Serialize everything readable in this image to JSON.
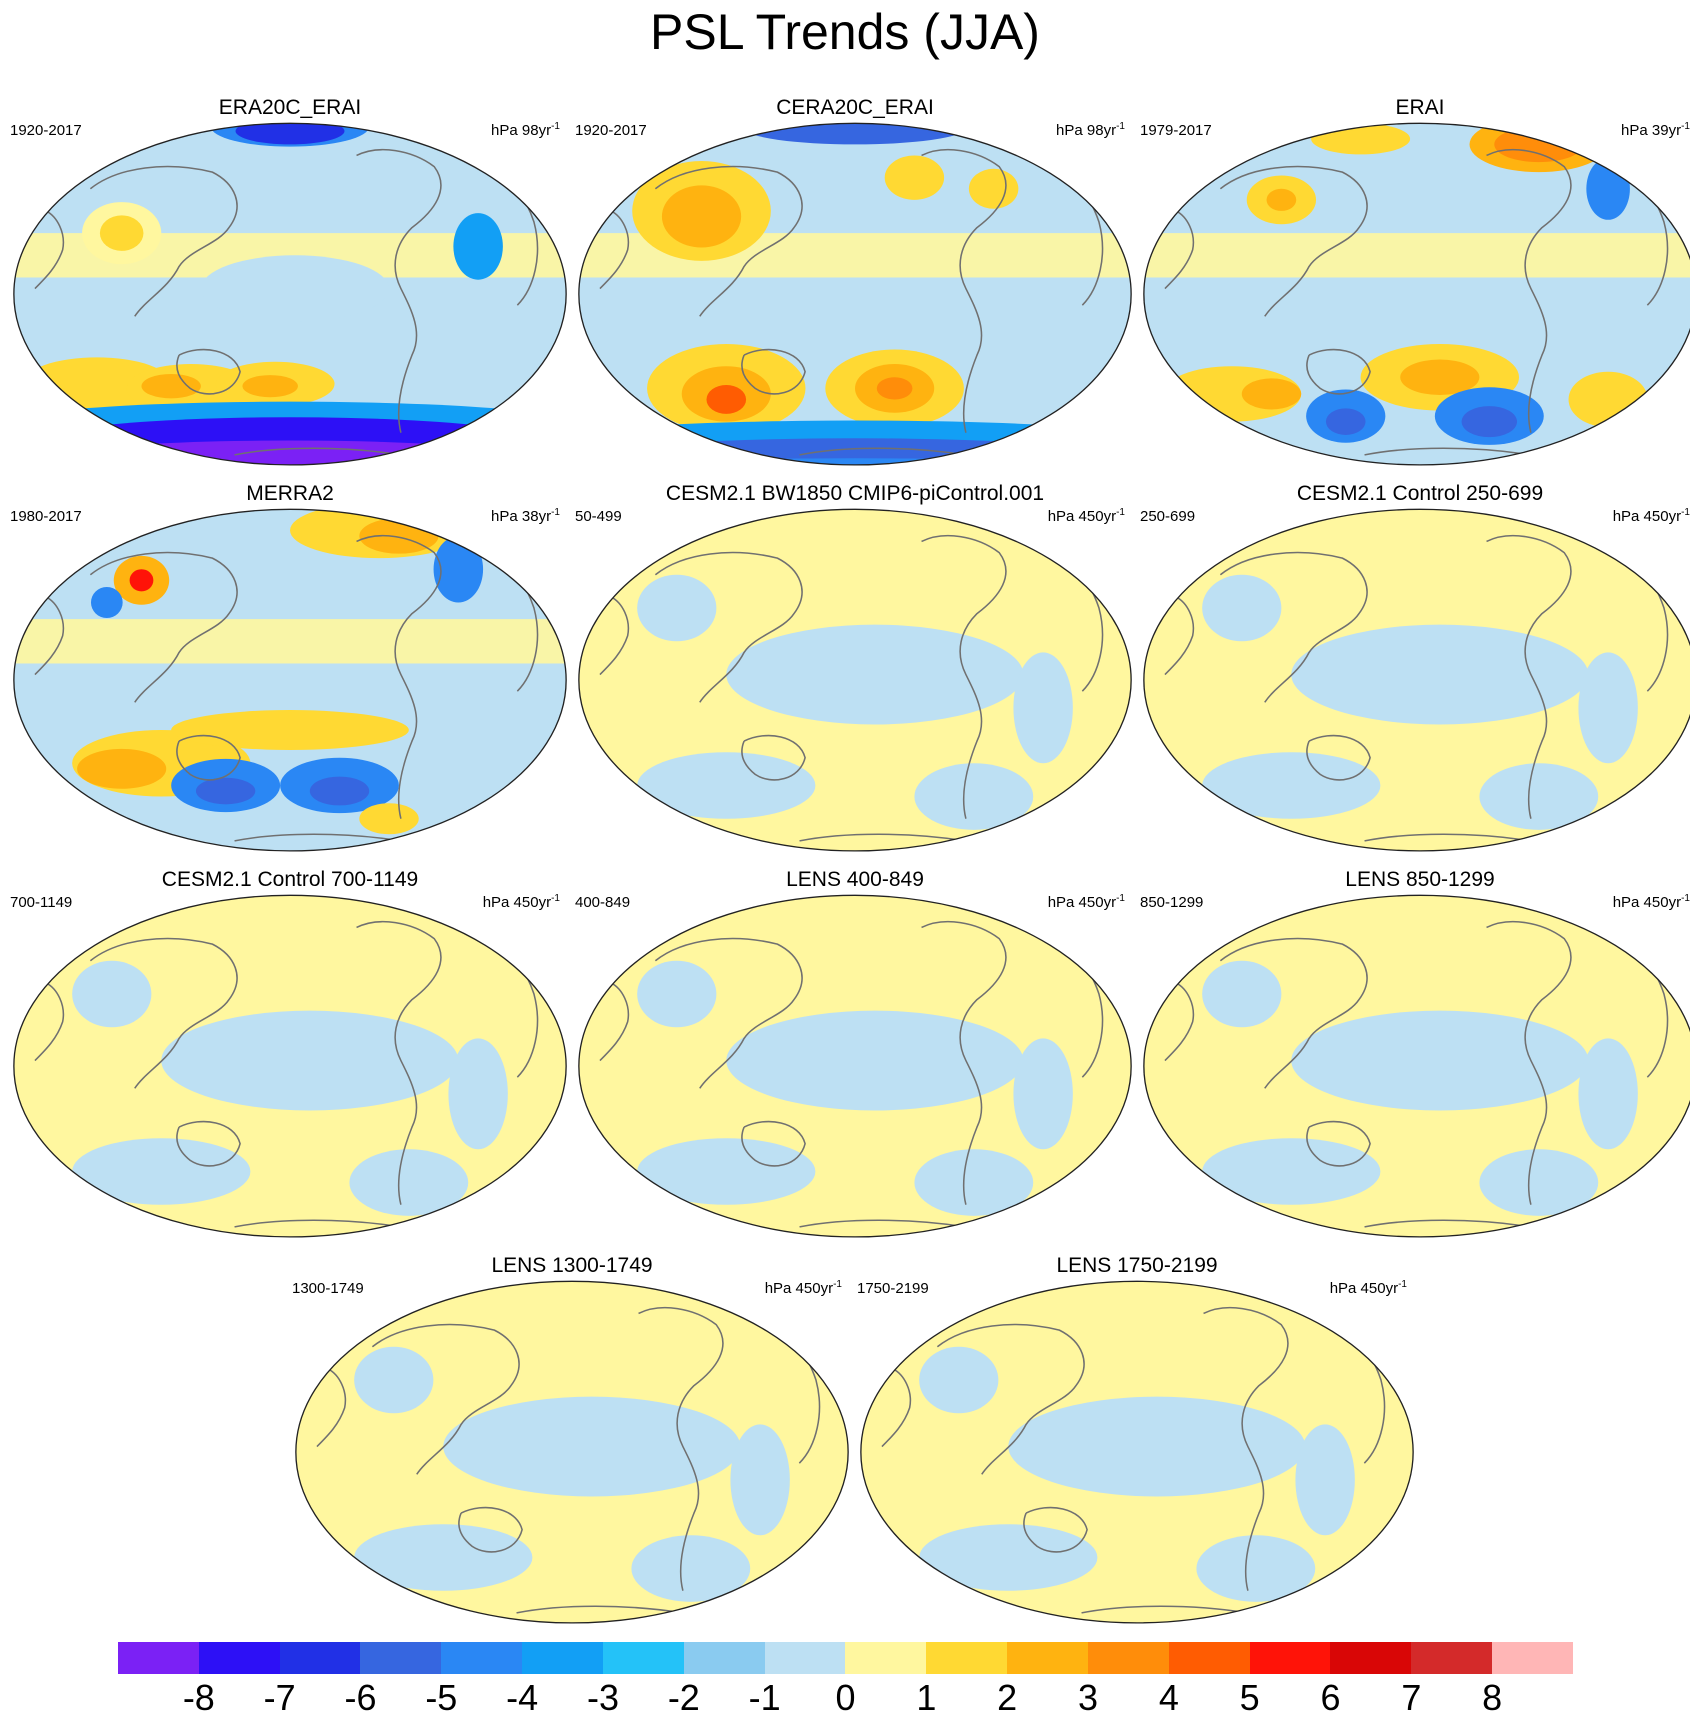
{
  "figure": {
    "title": "PSL Trends (JJA)"
  },
  "panels": [
    {
      "title": "ERA20C_ERAI",
      "period": "1920-2017",
      "units": "hPa 98yr",
      "units_exp": "-1",
      "pattern": "era20c"
    },
    {
      "title": "CERA20C_ERAI",
      "period": "1920-2017",
      "units": "hPa 98yr",
      "units_exp": "-1",
      "pattern": "cera20c"
    },
    {
      "title": "ERAI",
      "period": "1979-2017",
      "units": "hPa 39yr",
      "units_exp": "-1",
      "pattern": "erai"
    },
    {
      "title": "MERRA2",
      "period": "1980-2017",
      "units": "hPa 38yr",
      "units_exp": "-1",
      "pattern": "merra2"
    },
    {
      "title": "CESM2.1 BW1850 CMIP6-piControl.001",
      "period": "50-499",
      "units": "hPa 450yr",
      "units_exp": "-1",
      "pattern": "control"
    },
    {
      "title": "CESM2.1 Control 250-699",
      "period": "250-699",
      "units": "hPa 450yr",
      "units_exp": "-1",
      "pattern": "control"
    },
    {
      "title": "CESM2.1 Control 700-1149",
      "period": "700-1149",
      "units": "hPa 450yr",
      "units_exp": "-1",
      "pattern": "control"
    },
    {
      "title": "LENS 400-849",
      "period": "400-849",
      "units": "hPa 450yr",
      "units_exp": "-1",
      "pattern": "control"
    },
    {
      "title": "LENS 850-1299",
      "period": "850-1299",
      "units": "hPa 450yr",
      "units_exp": "-1",
      "pattern": "control"
    },
    {
      "title": "LENS 1300-1749",
      "period": "1300-1749",
      "units": "hPa 450yr",
      "units_exp": "-1",
      "pattern": "control"
    },
    {
      "title": "LENS 1750-2199",
      "period": "1750-2199",
      "units": "hPa 450yr",
      "units_exp": "-1",
      "pattern": "control"
    }
  ],
  "colorbar": {
    "labels": [
      "-8",
      "-7",
      "-6",
      "-5",
      "-4",
      "-3",
      "-2",
      "-1",
      "0",
      "1",
      "2",
      "3",
      "4",
      "5",
      "6",
      "7",
      "8"
    ],
    "colors": [
      "#7b21f5",
      "#2d10f6",
      "#2130e6",
      "#3666e0",
      "#2a87f4",
      "#129ff5",
      "#24c2f8",
      "#8acbf0",
      "#bde0f3",
      "#fff79f",
      "#ffd933",
      "#ffb310",
      "#ff8d0a",
      "#ff5c02",
      "#ff1308",
      "#d90606",
      "#d42a2a",
      "#ffb6b6"
    ]
  }
}
